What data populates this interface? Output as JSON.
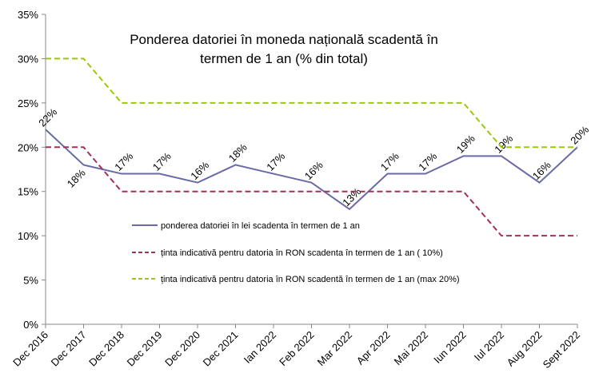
{
  "chart_data": {
    "type": "line",
    "title": "Ponderea datoriei în moneda națională scadentă în termen de 1 an (% din total)",
    "categories": [
      "Dec 2016",
      "Dec 2017",
      "Dec 2018",
      "Dec 2019",
      "Dec 2020",
      "Dec 2021",
      "Ian 2022",
      "Feb 2022",
      "Mar 2022",
      "Apr 2022",
      "Mai 2022",
      "Iun 2022",
      "Iul 2022",
      "Aug 2022",
      "Sept 2022"
    ],
    "series": [
      {
        "name": "ponderea datoriei în lei scadenta în termen de 1 an",
        "color": "#6a6aa6",
        "dash": false,
        "values": [
          22,
          18,
          17,
          17,
          16,
          18,
          17,
          16,
          13,
          17,
          17,
          19,
          19,
          16,
          20
        ],
        "value_labels": [
          "22%",
          "18%",
          "17%",
          "17%",
          "16%",
          "18%",
          "17%",
          "16%",
          "13%",
          "17%",
          "17%",
          "19%",
          "19%",
          "16%",
          "20%"
        ]
      },
      {
        "name": "ținta indicativă pentru datoria în RON scadenta în termen de  1 an ( 10%)",
        "color": "#a3305e",
        "dash": true,
        "values": [
          20,
          20,
          15,
          15,
          15,
          15,
          15,
          15,
          15,
          15,
          15,
          15,
          10,
          10,
          10
        ]
      },
      {
        "name": "ținta indicativă pentru datoria în RON scadentă în termen de  1 an (max 20%)",
        "color": "#9cc80a",
        "dash": true,
        "values": [
          30,
          30,
          25,
          25,
          25,
          25,
          25,
          25,
          25,
          25,
          25,
          25,
          20,
          20,
          20
        ]
      }
    ],
    "ylim": [
      0,
      35
    ],
    "yticks": [
      {
        "value": 0,
        "label": "0%"
      },
      {
        "value": 5,
        "label": "5%"
      },
      {
        "value": 10,
        "label": "10%"
      },
      {
        "value": 15,
        "label": "15%"
      },
      {
        "value": 20,
        "label": "20%"
      },
      {
        "value": 25,
        "label": "25%"
      },
      {
        "value": 30,
        "label": "30%"
      },
      {
        "value": 35,
        "label": "35%"
      }
    ],
    "grid": false
  }
}
